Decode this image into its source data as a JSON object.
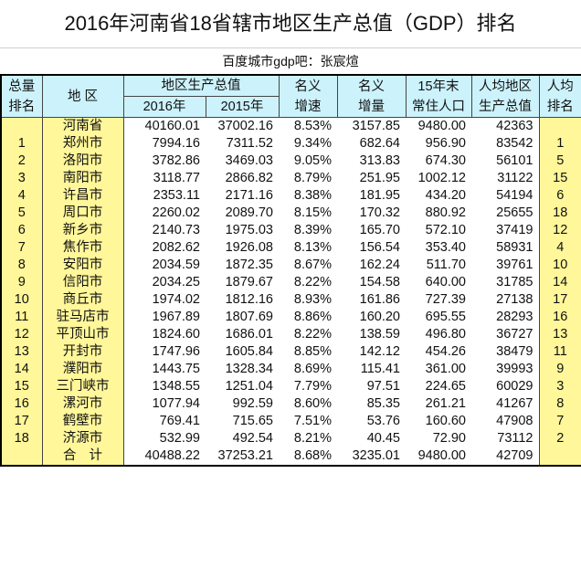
{
  "title": "2016年河南省18省辖市地区生产总值（GDP）排名",
  "subtitle": "百度城市gdp吧：张宸煊",
  "colors": {
    "header_bg": "#ccf2fc",
    "highlight_bg": "#fff79a"
  },
  "headers": {
    "total_rank": [
      "总量",
      "排名"
    ],
    "region": "地 区",
    "gdp_group": "地区生产总值",
    "gdp_2016": "2016年",
    "gdp_2015": "2015年",
    "nominal_growth": [
      "名义",
      "增速"
    ],
    "nominal_increase": [
      "名义",
      "增量"
    ],
    "population": [
      "15年末",
      "常住人口"
    ],
    "per_capita": [
      "人均地区",
      "生产总值"
    ],
    "per_capita_rank": [
      "人均",
      "排名"
    ]
  },
  "rows": [
    {
      "rank": "",
      "region": "河南省",
      "gdp2016": "40160.01",
      "gdp2015": "37002.16",
      "growth": "8.53%",
      "increase": "3157.85",
      "pop": "9480.00",
      "per_capita": "42363",
      "pc_rank": ""
    },
    {
      "rank": "1",
      "region": "郑州市",
      "gdp2016": "7994.16",
      "gdp2015": "7311.52",
      "growth": "9.34%",
      "increase": "682.64",
      "pop": "956.90",
      "per_capita": "83542",
      "pc_rank": "1"
    },
    {
      "rank": "2",
      "region": "洛阳市",
      "gdp2016": "3782.86",
      "gdp2015": "3469.03",
      "growth": "9.05%",
      "increase": "313.83",
      "pop": "674.30",
      "per_capita": "56101",
      "pc_rank": "5"
    },
    {
      "rank": "3",
      "region": "南阳市",
      "gdp2016": "3118.77",
      "gdp2015": "2866.82",
      "growth": "8.79%",
      "increase": "251.95",
      "pop": "1002.12",
      "per_capita": "31122",
      "pc_rank": "15"
    },
    {
      "rank": "4",
      "region": "许昌市",
      "gdp2016": "2353.11",
      "gdp2015": "2171.16",
      "growth": "8.38%",
      "increase": "181.95",
      "pop": "434.20",
      "per_capita": "54194",
      "pc_rank": "6"
    },
    {
      "rank": "5",
      "region": "周口市",
      "gdp2016": "2260.02",
      "gdp2015": "2089.70",
      "growth": "8.15%",
      "increase": "170.32",
      "pop": "880.92",
      "per_capita": "25655",
      "pc_rank": "18"
    },
    {
      "rank": "6",
      "region": "新乡市",
      "gdp2016": "2140.73",
      "gdp2015": "1975.03",
      "growth": "8.39%",
      "increase": "165.70",
      "pop": "572.10",
      "per_capita": "37419",
      "pc_rank": "12"
    },
    {
      "rank": "7",
      "region": "焦作市",
      "gdp2016": "2082.62",
      "gdp2015": "1926.08",
      "growth": "8.13%",
      "increase": "156.54",
      "pop": "353.40",
      "per_capita": "58931",
      "pc_rank": "4"
    },
    {
      "rank": "8",
      "region": "安阳市",
      "gdp2016": "2034.59",
      "gdp2015": "1872.35",
      "growth": "8.67%",
      "increase": "162.24",
      "pop": "511.70",
      "per_capita": "39761",
      "pc_rank": "10"
    },
    {
      "rank": "9",
      "region": "信阳市",
      "gdp2016": "2034.25",
      "gdp2015": "1879.67",
      "growth": "8.22%",
      "increase": "154.58",
      "pop": "640.00",
      "per_capita": "31785",
      "pc_rank": "14"
    },
    {
      "rank": "10",
      "region": "商丘市",
      "gdp2016": "1974.02",
      "gdp2015": "1812.16",
      "growth": "8.93%",
      "increase": "161.86",
      "pop": "727.39",
      "per_capita": "27138",
      "pc_rank": "17"
    },
    {
      "rank": "11",
      "region": "驻马店市",
      "gdp2016": "1967.89",
      "gdp2015": "1807.69",
      "growth": "8.86%",
      "increase": "160.20",
      "pop": "695.55",
      "per_capita": "28293",
      "pc_rank": "16"
    },
    {
      "rank": "12",
      "region": "平顶山市",
      "gdp2016": "1824.60",
      "gdp2015": "1686.01",
      "growth": "8.22%",
      "increase": "138.59",
      "pop": "496.80",
      "per_capita": "36727",
      "pc_rank": "13"
    },
    {
      "rank": "13",
      "region": "开封市",
      "gdp2016": "1747.96",
      "gdp2015": "1605.84",
      "growth": "8.85%",
      "increase": "142.12",
      "pop": "454.26",
      "per_capita": "38479",
      "pc_rank": "11"
    },
    {
      "rank": "14",
      "region": "濮阳市",
      "gdp2016": "1443.75",
      "gdp2015": "1328.34",
      "growth": "8.69%",
      "increase": "115.41",
      "pop": "361.00",
      "per_capita": "39993",
      "pc_rank": "9"
    },
    {
      "rank": "15",
      "region": "三门峡市",
      "gdp2016": "1348.55",
      "gdp2015": "1251.04",
      "growth": "7.79%",
      "increase": "97.51",
      "pop": "224.65",
      "per_capita": "60029",
      "pc_rank": "3"
    },
    {
      "rank": "16",
      "region": "漯河市",
      "gdp2016": "1077.94",
      "gdp2015": "992.59",
      "growth": "8.60%",
      "increase": "85.35",
      "pop": "261.21",
      "per_capita": "41267",
      "pc_rank": "8"
    },
    {
      "rank": "17",
      "region": "鹤壁市",
      "gdp2016": "769.41",
      "gdp2015": "715.65",
      "growth": "7.51%",
      "increase": "53.76",
      "pop": "160.60",
      "per_capita": "47908",
      "pc_rank": "7"
    },
    {
      "rank": "18",
      "region": "济源市",
      "gdp2016": "532.99",
      "gdp2015": "492.54",
      "growth": "8.21%",
      "increase": "40.45",
      "pop": "72.90",
      "per_capita": "73112",
      "pc_rank": "2"
    }
  ],
  "total": {
    "rank": "",
    "region": "合计",
    "gdp2016": "40488.22",
    "gdp2015": "37253.21",
    "growth": "8.68%",
    "increase": "3235.01",
    "pop": "9480.00",
    "per_capita": "42709",
    "pc_rank": ""
  }
}
